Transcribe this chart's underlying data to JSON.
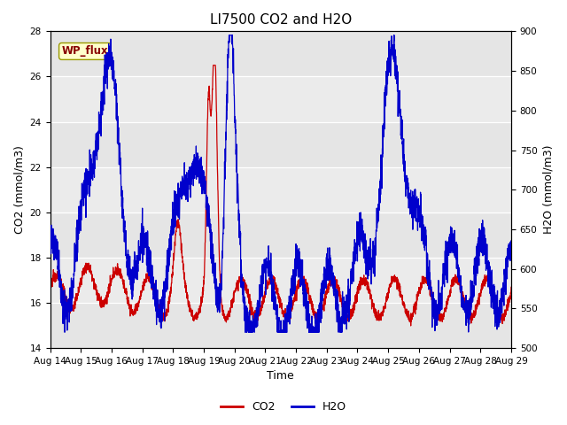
{
  "title": "LI7500 CO2 and H2O",
  "xlabel": "Time",
  "ylabel_left": "CO2 (mmol/m3)",
  "ylabel_right": "H2O (mmol/m3)",
  "ylim_left": [
    14,
    28
  ],
  "ylim_right": [
    500,
    900
  ],
  "yticks_left": [
    14,
    16,
    18,
    20,
    22,
    24,
    26,
    28
  ],
  "yticks_right": [
    500,
    550,
    600,
    650,
    700,
    750,
    800,
    850,
    900
  ],
  "xticklabels": [
    "Aug 14",
    "Aug 15",
    "Aug 16",
    "Aug 17",
    "Aug 18",
    "Aug 19",
    "Aug 20",
    "Aug 21",
    "Aug 22",
    "Aug 23",
    "Aug 24",
    "Aug 25",
    "Aug 26",
    "Aug 27",
    "Aug 28",
    "Aug 29"
  ],
  "co2_color": "#cc0000",
  "h2o_color": "#0000cc",
  "annotation_text": "WP_flux",
  "background_color": "#ffffff",
  "plot_bg_color": "#e5e5e5",
  "band_color": "#d0d0d0",
  "title_fontsize": 11,
  "axis_fontsize": 9,
  "tick_fontsize": 7.5,
  "line_width": 0.9
}
